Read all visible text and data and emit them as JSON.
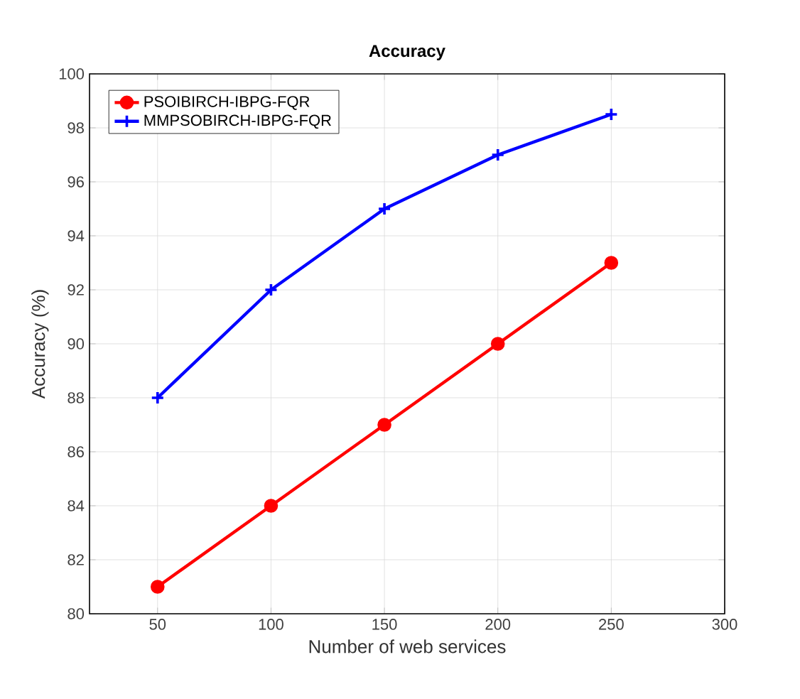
{
  "chart_data": {
    "type": "line",
    "title": "Accuracy",
    "xlabel": "Number of web services",
    "ylabel": "Accuracy (%)",
    "x": [
      50,
      100,
      150,
      200,
      250
    ],
    "series": [
      {
        "name": "PSOIBIRCH-IBPG-FQR",
        "color": "#ff0000",
        "marker": "circle",
        "values": [
          81,
          84,
          87,
          90,
          93
        ]
      },
      {
        "name": "MMPSOBIRCH-IBPG-FQR",
        "color": "#0000ff",
        "marker": "cross",
        "values": [
          88,
          92,
          95,
          97,
          98.5
        ]
      }
    ],
    "xlim": [
      20,
      300
    ],
    "xticks": [
      50,
      100,
      150,
      200,
      250,
      300
    ],
    "ylim": [
      80,
      100
    ],
    "yticks": [
      80,
      82,
      84,
      86,
      88,
      90,
      92,
      94,
      96,
      98,
      100
    ],
    "grid": true,
    "legend": "top left",
    "line_style": "solid"
  }
}
